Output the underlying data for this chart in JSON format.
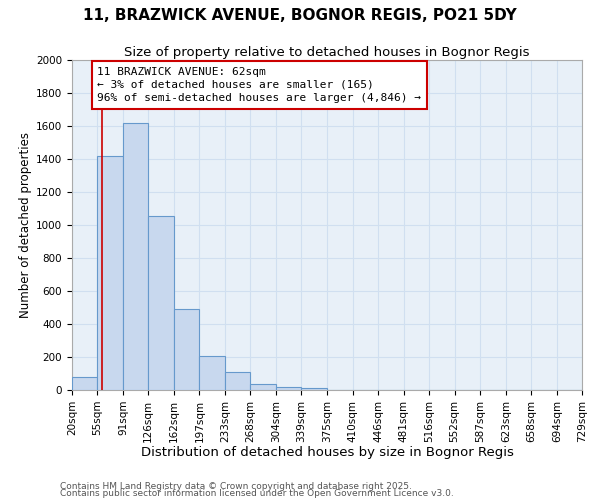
{
  "title": "11, BRAZWICK AVENUE, BOGNOR REGIS, PO21 5DY",
  "subtitle": "Size of property relative to detached houses in Bognor Regis",
  "xlabel": "Distribution of detached houses by size in Bognor Regis",
  "ylabel": "Number of detached properties",
  "bin_edges": [
    20,
    55,
    91,
    126,
    162,
    197,
    233,
    268,
    304,
    339,
    375,
    410,
    446,
    481,
    516,
    552,
    587,
    623,
    658,
    694,
    729
  ],
  "bin_labels": [
    "20sqm",
    "55sqm",
    "91sqm",
    "126sqm",
    "162sqm",
    "197sqm",
    "233sqm",
    "268sqm",
    "304sqm",
    "339sqm",
    "375sqm",
    "410sqm",
    "446sqm",
    "481sqm",
    "516sqm",
    "552sqm",
    "587sqm",
    "623sqm",
    "658sqm",
    "694sqm",
    "729sqm"
  ],
  "bar_heights": [
    80,
    1420,
    1620,
    1055,
    490,
    205,
    110,
    35,
    20,
    10,
    0,
    0,
    0,
    0,
    0,
    0,
    0,
    0,
    0,
    0
  ],
  "bar_color": "#c8d8ee",
  "bar_edge_color": "#6699cc",
  "ylim": [
    0,
    2000
  ],
  "yticks": [
    0,
    200,
    400,
    600,
    800,
    1000,
    1200,
    1400,
    1600,
    1800,
    2000
  ],
  "grid_color": "#d0dff0",
  "background_color": "#ffffff",
  "plot_bg_color": "#e8f0f8",
  "property_line_x": 62,
  "property_line_color": "#cc0000",
  "annotation_line1": "11 BRAZWICK AVENUE: 62sqm",
  "annotation_line2": "← 3% of detached houses are smaller (165)",
  "annotation_line3": "96% of semi-detached houses are larger (4,846) →",
  "annotation_box_color": "#cc0000",
  "annotation_bg": "#ffffff",
  "footnote1": "Contains HM Land Registry data © Crown copyright and database right 2025.",
  "footnote2": "Contains public sector information licensed under the Open Government Licence v3.0.",
  "title_fontsize": 11,
  "subtitle_fontsize": 9.5,
  "xlabel_fontsize": 9.5,
  "ylabel_fontsize": 8.5,
  "tick_fontsize": 7.5,
  "annotation_fontsize": 8,
  "footnote_fontsize": 6.5
}
